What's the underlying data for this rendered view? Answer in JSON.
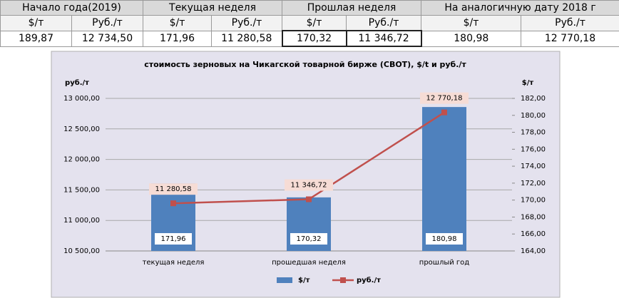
{
  "table": {
    "header": [
      "Начало года(2019)",
      "Текущая неделя",
      "Прошлая неделя",
      "На аналогичную дату 2018 г"
    ],
    "subheader": [
      "$/т",
      "Руб./т",
      "$/т",
      "Руб./т",
      "$/т",
      "Руб./т",
      "$/т",
      "Руб./т"
    ],
    "rows": [
      [
        "189,87",
        "12 734,50",
        "171,96",
        "11 280,58",
        "170,32",
        "11 346,72",
        "180,98",
        "12 770,18"
      ]
    ]
  },
  "chart_data": {
    "type": "combo",
    "title": "стоимость зерновых на Чикагской товарной бирже (CBOT), $/t и руб./т",
    "y_label": "руб./т",
    "y2_label": "$/т",
    "categories": [
      "текущая неделя",
      "прошедшая неделя",
      "прошлый год"
    ],
    "series": [
      {
        "name": "$/т",
        "type": "bar",
        "axis": "y2",
        "color": "#4f81bd",
        "values": [
          171.96,
          170.32,
          180.98
        ],
        "value_labels": [
          "171,96",
          "170,32",
          "180,98"
        ]
      },
      {
        "name": "руб./т",
        "type": "line",
        "color": "#c0504d",
        "values": [
          11280.58,
          11346.72,
          12770.18
        ],
        "value_labels": [
          "11 280,58",
          "11 346,72",
          "12 770,18"
        ]
      }
    ],
    "ylim": [
      10500,
      13000
    ],
    "yticks": [
      {
        "value": 10500,
        "label": "10 500,00"
      },
      {
        "value": 11000,
        "label": "11 000,00"
      },
      {
        "value": 11500,
        "label": "11 500,00"
      },
      {
        "value": 12000,
        "label": "12 000,00"
      },
      {
        "value": 12500,
        "label": "12 500,00"
      },
      {
        "value": 13000,
        "label": "13 000,00"
      }
    ],
    "y2lim": [
      164,
      182
    ],
    "y2ticks": [
      {
        "value": 164,
        "label": "164,00"
      },
      {
        "value": 166,
        "label": "166,00"
      },
      {
        "value": 168,
        "label": "168,00"
      },
      {
        "value": 170,
        "label": "170,00"
      },
      {
        "value": 172,
        "label": "172,00"
      },
      {
        "value": 174,
        "label": "174,00"
      },
      {
        "value": 176,
        "label": "176,00"
      },
      {
        "value": 178,
        "label": "178,00"
      },
      {
        "value": 180,
        "label": "180,00"
      },
      {
        "value": 182,
        "label": "182,00"
      }
    ],
    "grid": true,
    "legend": "bottom"
  }
}
